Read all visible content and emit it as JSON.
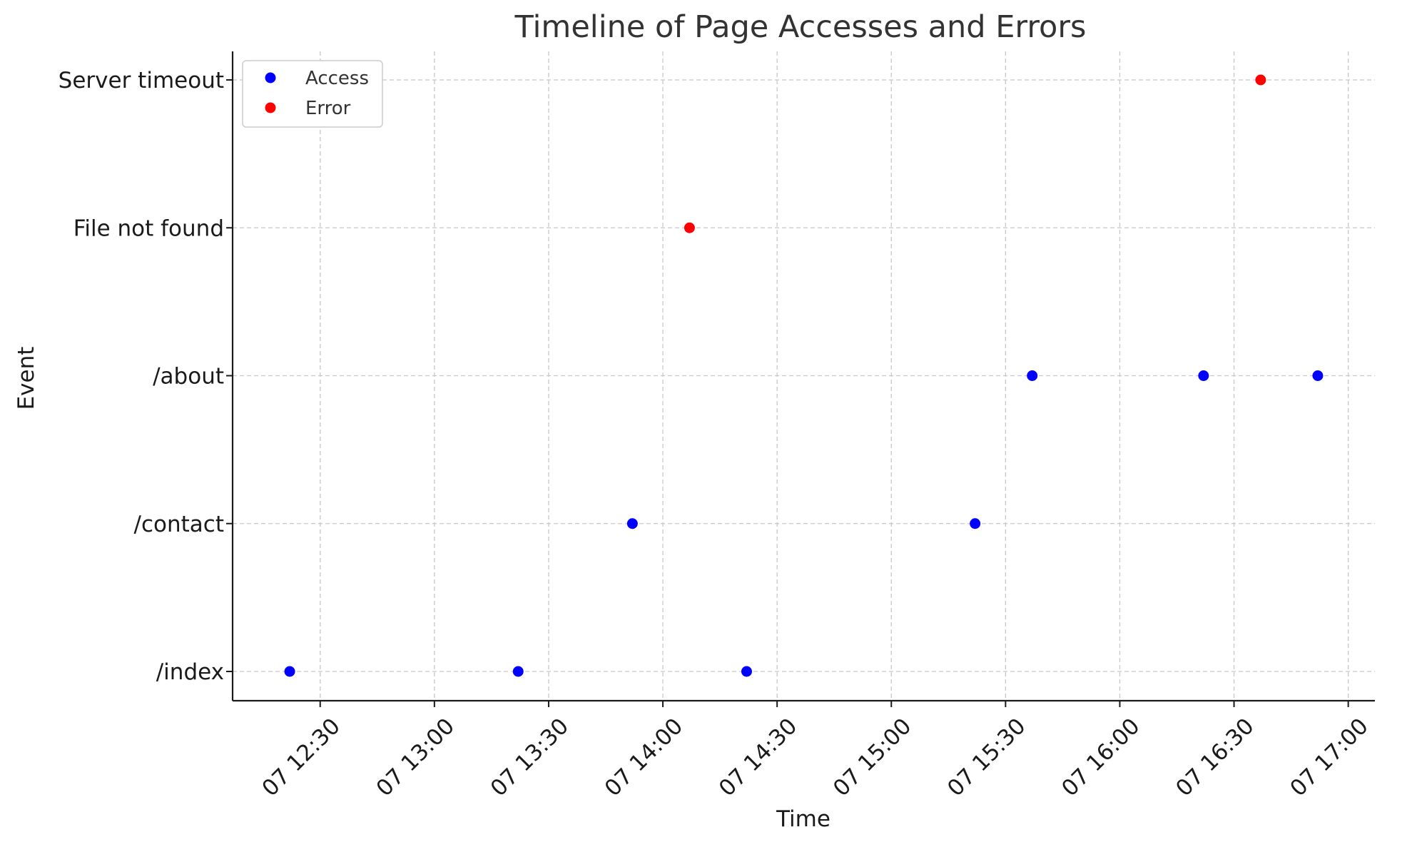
{
  "chart_data": {
    "type": "scatter",
    "title": "Timeline of Page Accesses and Errors",
    "xlabel": "Time",
    "ylabel": "Event",
    "x_axis_type": "datetime",
    "xlim": [
      "12:07",
      "17:07"
    ],
    "x_ticks": [
      "12:30",
      "13:00",
      "13:30",
      "14:00",
      "14:30",
      "15:00",
      "15:30",
      "16:00",
      "16:30",
      "17:00"
    ],
    "x_tick_labels": [
      "07 12:30",
      "07 13:00",
      "07 13:30",
      "07 14:00",
      "07 14:30",
      "07 15:00",
      "07 15:30",
      "07 16:00",
      "07 16:30",
      "07 17:00"
    ],
    "categories": [
      "/index",
      "/contact",
      "/about",
      "File not found",
      "Server timeout"
    ],
    "grid": true,
    "legend_position": "top-left",
    "series": [
      {
        "name": "Access",
        "color": "#0000ff",
        "points": [
          {
            "x": "12:22",
            "y": "/index"
          },
          {
            "x": "13:22",
            "y": "/index"
          },
          {
            "x": "13:52",
            "y": "/contact"
          },
          {
            "x": "14:22",
            "y": "/index"
          },
          {
            "x": "15:22",
            "y": "/contact"
          },
          {
            "x": "15:37",
            "y": "/about"
          },
          {
            "x": "16:22",
            "y": "/about"
          },
          {
            "x": "16:52",
            "y": "/about"
          }
        ]
      },
      {
        "name": "Error",
        "color": "#ff0000",
        "points": [
          {
            "x": "14:07",
            "y": "File not found"
          },
          {
            "x": "16:37",
            "y": "Server timeout"
          }
        ]
      }
    ]
  }
}
